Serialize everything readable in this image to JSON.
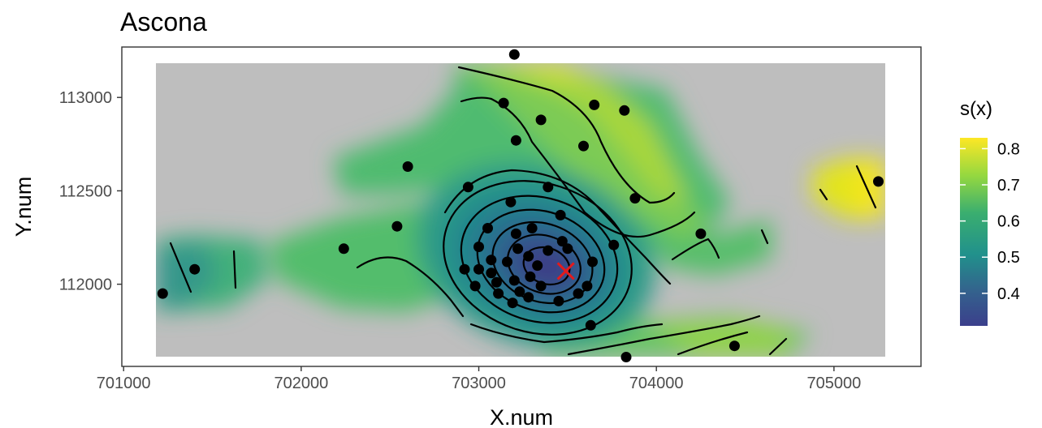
{
  "chart_data": {
    "type": "heatmap",
    "title": "Ascona",
    "xlabel": "X.num",
    "ylabel": "Y.num",
    "xlim": [
      700990,
      705490
    ],
    "ylim": [
      111560,
      113270
    ],
    "x_ticks": [
      701000,
      702000,
      703000,
      704000,
      705000
    ],
    "x_tick_labels": [
      "701000",
      "702000",
      "703000",
      "704000",
      "705000"
    ],
    "y_ticks": [
      112000,
      112500,
      113000
    ],
    "y_tick_labels": [
      "112000",
      "112500",
      "113000"
    ],
    "grid": false,
    "legend": {
      "title": "s(x)",
      "placement": "right",
      "range": [
        0.31,
        0.83
      ],
      "ticks": [
        0.4,
        0.5,
        0.6,
        0.7,
        0.8
      ],
      "tick_labels": [
        "0.4",
        "0.5",
        "0.6",
        "0.7",
        "0.8"
      ],
      "palette": [
        "#440154",
        "#3b528b",
        "#21918c",
        "#5ec962",
        "#fde725"
      ]
    },
    "background_color": "#bebebe",
    "minimum_marker": {
      "x": 703490,
      "y": 112070,
      "color": "#e41a1c"
    },
    "points": [
      [
        701220,
        111950
      ],
      [
        701400,
        112080
      ],
      [
        702240,
        112190
      ],
      [
        702540,
        112310
      ],
      [
        702600,
        112630
      ],
      [
        702940,
        112520
      ],
      [
        703200,
        113230
      ],
      [
        703140,
        112970
      ],
      [
        703210,
        112770
      ],
      [
        703350,
        112880
      ],
      [
        703650,
        112960
      ],
      [
        703820,
        112930
      ],
      [
        703590,
        112740
      ],
      [
        703880,
        112460
      ],
      [
        703390,
        112520
      ],
      [
        703180,
        112440
      ],
      [
        703460,
        112370
      ],
      [
        703050,
        112300
      ],
      [
        703210,
        112270
      ],
      [
        703300,
        112300
      ],
      [
        703000,
        112200
      ],
      [
        703220,
        112190
      ],
      [
        703390,
        112180
      ],
      [
        703470,
        112230
      ],
      [
        703500,
        112190
      ],
      [
        703070,
        112130
      ],
      [
        703160,
        112120
      ],
      [
        703280,
        112150
      ],
      [
        703330,
        112100
      ],
      [
        703000,
        112080
      ],
      [
        703070,
        112060
      ],
      [
        703290,
        112040
      ],
      [
        703100,
        112010
      ],
      [
        703200,
        112020
      ],
      [
        702920,
        112080
      ],
      [
        702980,
        111990
      ],
      [
        703110,
        111950
      ],
      [
        703230,
        111960
      ],
      [
        703350,
        111990
      ],
      [
        703280,
        111930
      ],
      [
        703190,
        111900
      ],
      [
        703560,
        111950
      ],
      [
        703640,
        112120
      ],
      [
        703610,
        111990
      ],
      [
        703760,
        112210
      ],
      [
        703450,
        111910
      ],
      [
        703630,
        111780
      ],
      [
        704250,
        112270
      ],
      [
        703830,
        111610
      ],
      [
        704440,
        111670
      ],
      [
        705250,
        112550
      ]
    ]
  }
}
